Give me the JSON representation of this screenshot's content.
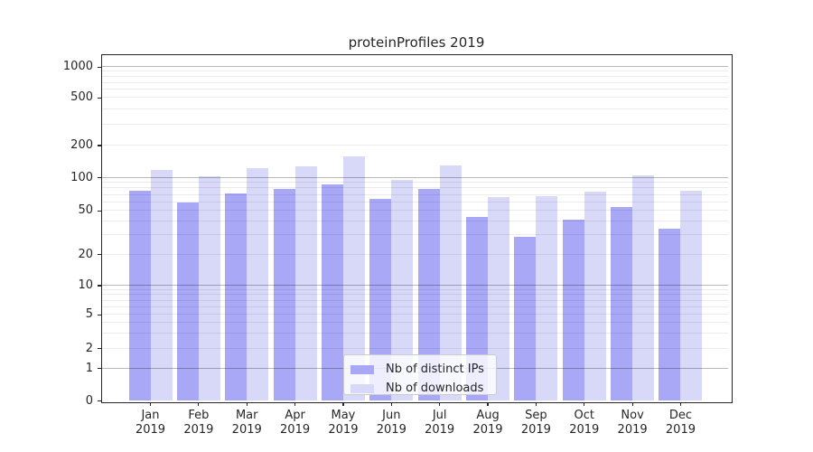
{
  "title": "proteinProfiles 2019",
  "chart_data": {
    "type": "bar",
    "title": "proteinProfiles 2019",
    "months": [
      "Jan",
      "Feb",
      "Mar",
      "Apr",
      "May",
      "Jun",
      "Jul",
      "Aug",
      "Sep",
      "Oct",
      "Nov",
      "Dec"
    ],
    "year": "2019",
    "series": [
      {
        "name": "Nb of distinct IPs",
        "color": "#a8a8f7",
        "values": [
          75,
          59,
          71,
          79,
          86,
          64,
          78,
          44,
          29,
          41,
          54,
          34
        ]
      },
      {
        "name": "Nb of downloads",
        "color": "#d8d8f8",
        "values": [
          117,
          103,
          121,
          127,
          158,
          94,
          129,
          66,
          67,
          74,
          105,
          76
        ]
      }
    ],
    "y_ticks": [
      0,
      1,
      2,
      5,
      10,
      20,
      50,
      100,
      200,
      500,
      1000
    ],
    "y_scale": "logarithmic with zero baseline",
    "ylim": [
      0,
      1300
    ],
    "xlabel": "",
    "ylabel": "",
    "grid": {
      "major": "decade lines (1,10,100,1000)",
      "minor": "log subdivisions"
    },
    "legend": {
      "position": "inside bottom-center",
      "items": [
        "Nb of distinct IPs",
        "Nb of downloads"
      ]
    }
  },
  "appearance": {
    "bar_color_distinct_ips": "#a8a8f7",
    "bar_color_downloads": "#d8d8f8",
    "grid_major": "rgba(0,0,0,0.28)",
    "grid_minor": "rgba(0,0,0,0.08)",
    "axis": "#262626",
    "text": "#262626",
    "background": "#ffffff",
    "legend_border": "#cccccc"
  }
}
